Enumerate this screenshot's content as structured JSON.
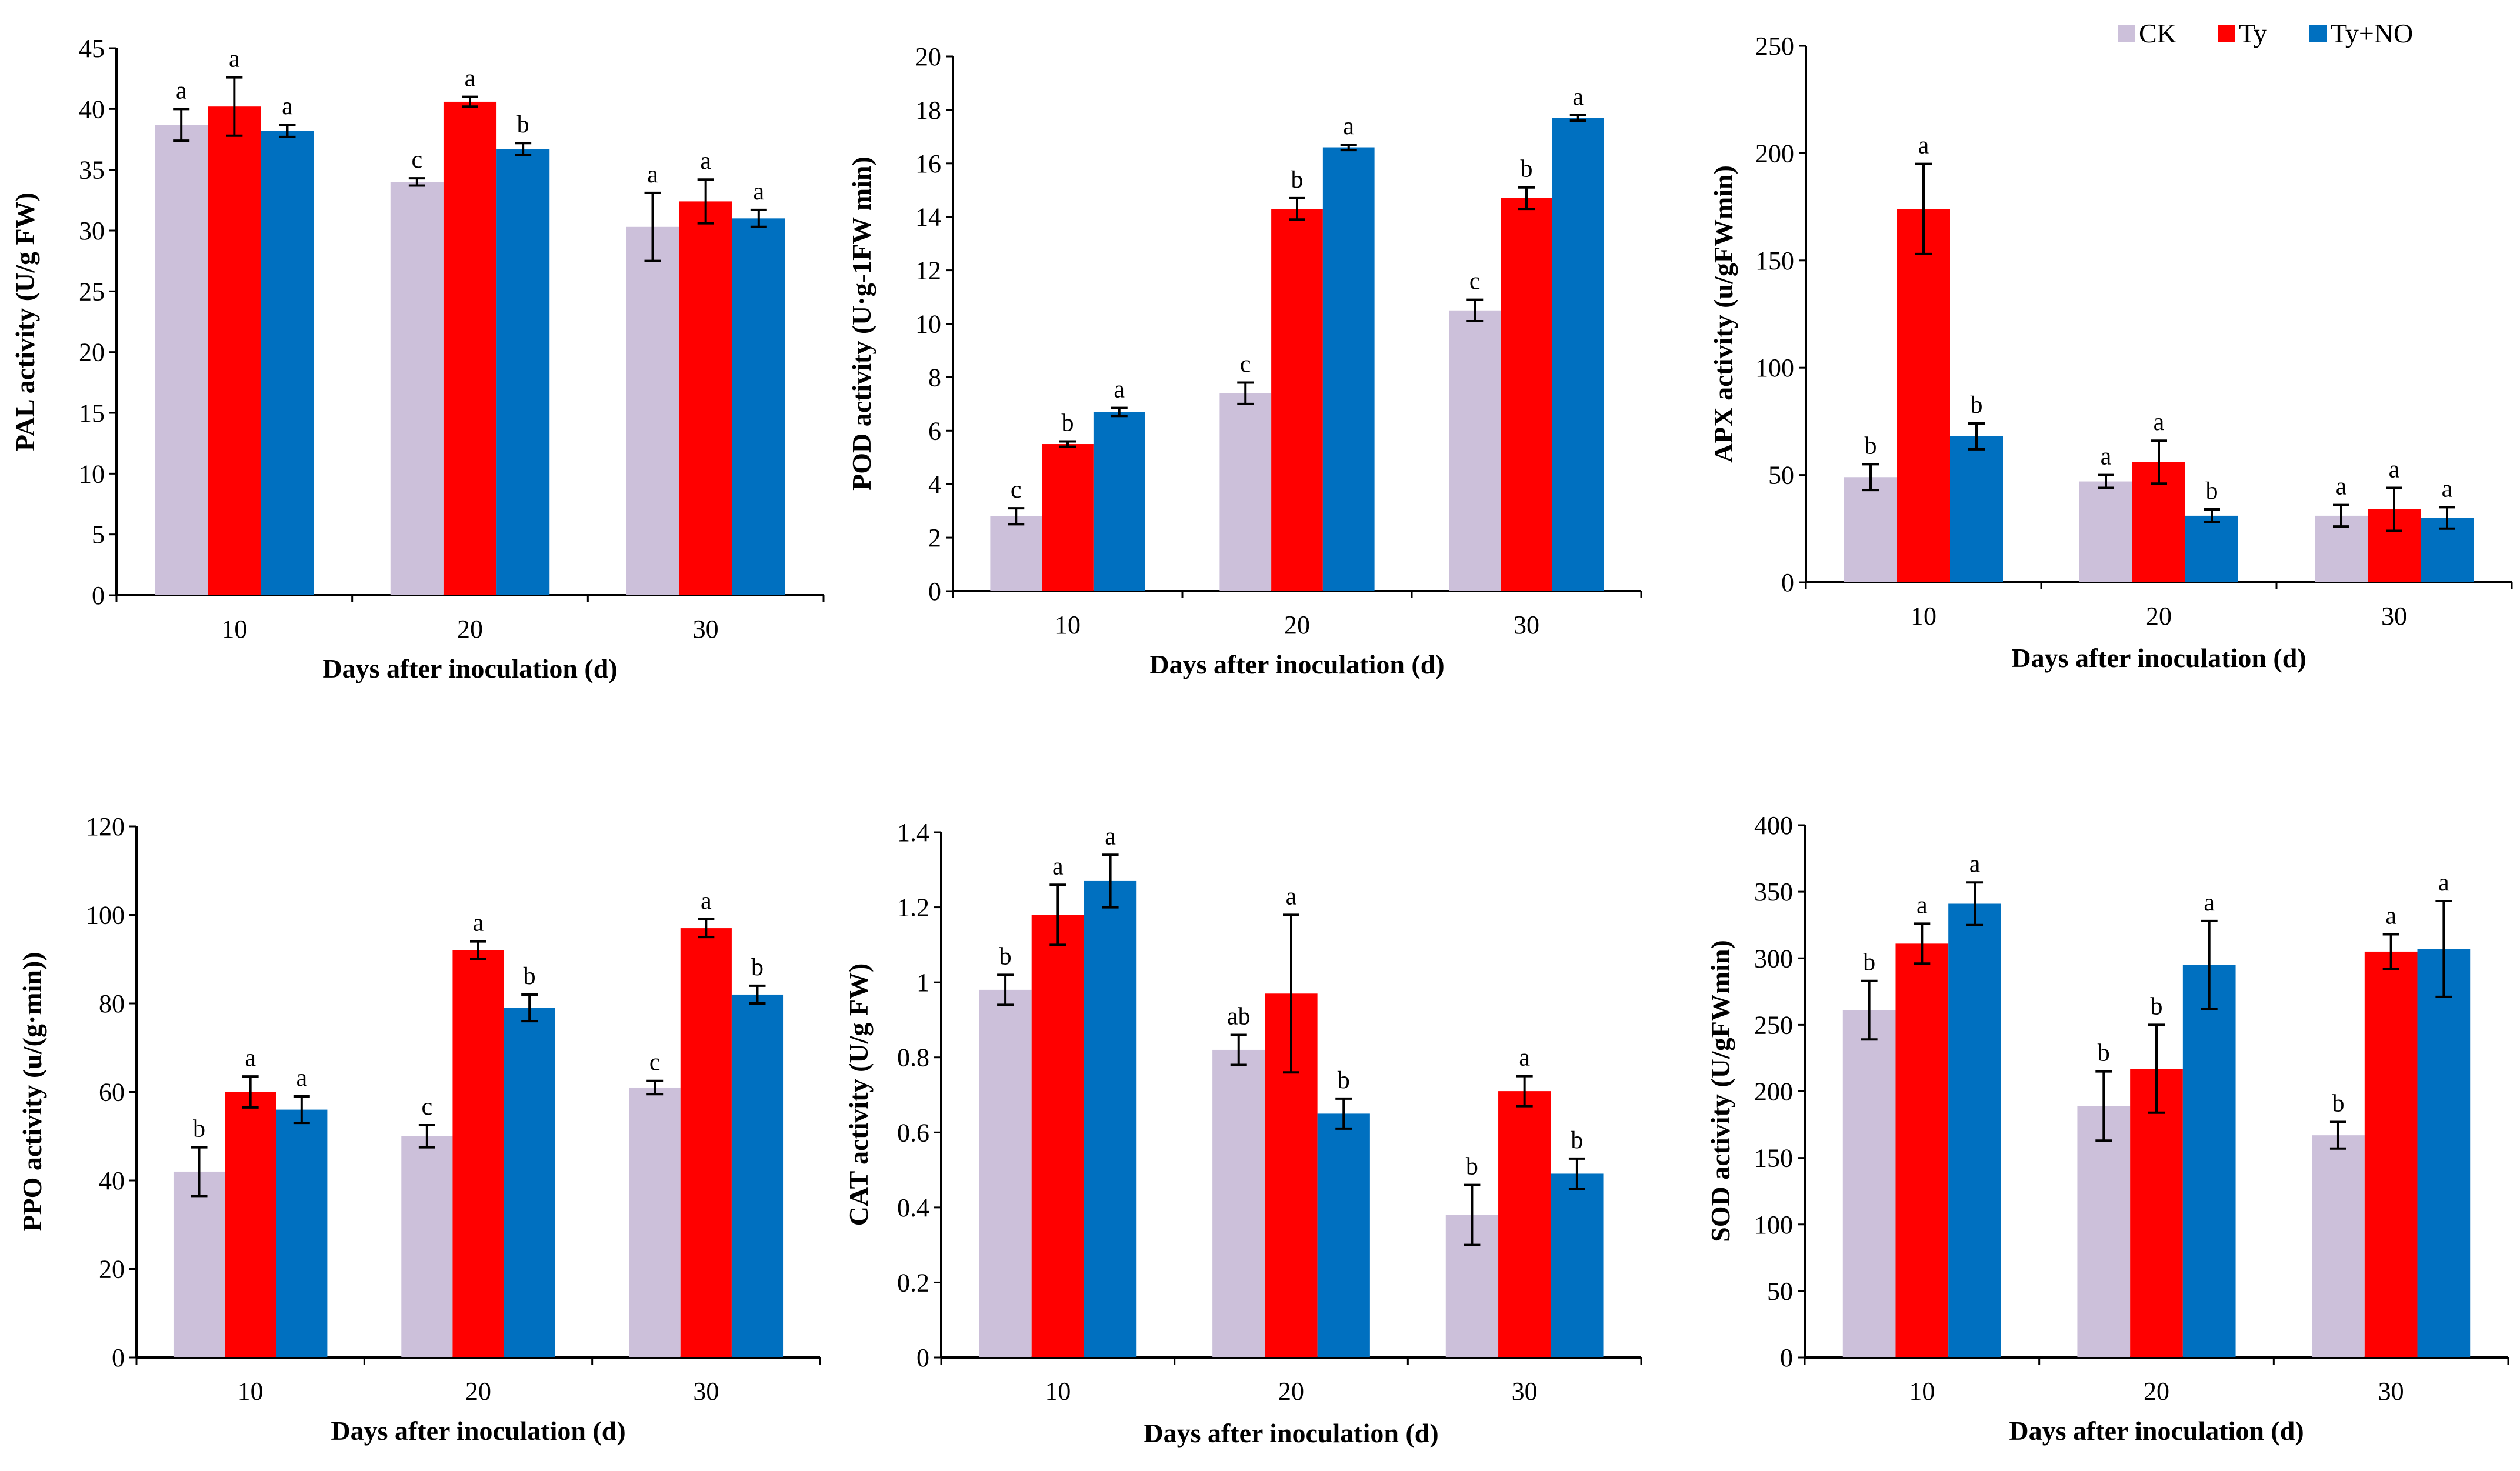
{
  "legend": [
    {
      "name": "CK",
      "color": "#ccc0da"
    },
    {
      "name": "Ty",
      "color": "#ff0000"
    },
    {
      "name": "Ty+NO",
      "color": "#0070c0"
    }
  ],
  "chart_data": [
    {
      "type": "bar",
      "id": "pal",
      "categories": [
        "10",
        "20",
        "30"
      ],
      "xlabel": "Days after inoculation (d)",
      "ylabel": "PAL activity (U/g FW)",
      "ylim": [
        0,
        45
      ],
      "yticks": [
        "0",
        "5",
        "10",
        "15",
        "20",
        "25",
        "30",
        "35",
        "40",
        "45"
      ],
      "series": [
        {
          "name": "CK",
          "values": [
            38.7,
            34.0,
            30.3
          ],
          "errors": [
            1.3,
            0.3,
            2.8
          ],
          "letters": [
            "a",
            "c",
            "a"
          ]
        },
        {
          "name": "Ty",
          "values": [
            40.2,
            40.6,
            32.4
          ],
          "errors": [
            2.4,
            0.4,
            1.8
          ],
          "letters": [
            "a",
            "a",
            "a"
          ]
        },
        {
          "name": "Ty+NO",
          "values": [
            38.2,
            36.7,
            31.0
          ],
          "errors": [
            0.5,
            0.5,
            0.7
          ],
          "letters": [
            "a",
            "b",
            "a"
          ]
        }
      ]
    },
    {
      "type": "bar",
      "id": "pod",
      "categories": [
        "10",
        "20",
        "30"
      ],
      "xlabel": "Days after inoculation (d)",
      "ylabel": "POD activity (U·g-1FW min)",
      "ylim": [
        0,
        20
      ],
      "yticks": [
        "0",
        "2",
        "4",
        "6",
        "8",
        "10",
        "12",
        "14",
        "16",
        "18",
        "20"
      ],
      "series": [
        {
          "name": "CK",
          "values": [
            2.8,
            7.4,
            10.5
          ],
          "errors": [
            0.3,
            0.4,
            0.4
          ],
          "letters": [
            "c",
            "c",
            "c"
          ]
        },
        {
          "name": "Ty",
          "values": [
            5.5,
            14.3,
            14.7
          ],
          "errors": [
            0.1,
            0.4,
            0.4
          ],
          "letters": [
            "b",
            "b",
            "b"
          ]
        },
        {
          "name": "Ty+NO",
          "values": [
            6.7,
            16.6,
            17.7
          ],
          "errors": [
            0.15,
            0.1,
            0.1
          ],
          "letters": [
            "a",
            "a",
            "a"
          ]
        }
      ]
    },
    {
      "type": "bar",
      "id": "apx",
      "categories": [
        "10",
        "20",
        "30"
      ],
      "xlabel": "Days after inoculation (d)",
      "ylabel": "APX activity (u/gFWmin)",
      "ylim": [
        0,
        250
      ],
      "yticks": [
        "0",
        "50",
        "100",
        "150",
        "200",
        "250"
      ],
      "series": [
        {
          "name": "CK",
          "values": [
            49,
            47,
            31
          ],
          "errors": [
            6,
            3,
            5
          ],
          "letters": [
            "b",
            "a",
            "a"
          ]
        },
        {
          "name": "Ty",
          "values": [
            174,
            56,
            34
          ],
          "errors": [
            21,
            10,
            10
          ],
          "letters": [
            "a",
            "a",
            "a"
          ]
        },
        {
          "name": "Ty+NO",
          "values": [
            68,
            31,
            30
          ],
          "errors": [
            6,
            3,
            5
          ],
          "letters": [
            "b",
            "b",
            "a"
          ]
        }
      ]
    },
    {
      "type": "bar",
      "id": "ppo",
      "categories": [
        "10",
        "20",
        "30"
      ],
      "xlabel": "Days after inoculation (d)",
      "ylabel": "PPO activity (u/(g·min))",
      "ylim": [
        0,
        120
      ],
      "yticks": [
        "0",
        "20",
        "40",
        "60",
        "80",
        "100",
        "120"
      ],
      "series": [
        {
          "name": "CK",
          "values": [
            42,
            50,
            61
          ],
          "errors": [
            5.5,
            2.5,
            1.5
          ],
          "letters": [
            "b",
            "c",
            "c"
          ]
        },
        {
          "name": "Ty",
          "values": [
            60,
            92,
            97
          ],
          "errors": [
            3.5,
            2,
            2
          ],
          "letters": [
            "a",
            "a",
            "a"
          ]
        },
        {
          "name": "Ty+NO",
          "values": [
            56,
            79,
            82
          ],
          "errors": [
            3,
            3,
            2
          ],
          "letters": [
            "a",
            "b",
            "b"
          ]
        }
      ]
    },
    {
      "type": "bar",
      "id": "cat",
      "categories": [
        "10",
        "20",
        "30"
      ],
      "xlabel": "Days after inoculation (d)",
      "ylabel": "CAT activity (U/g FW)",
      "ylim": [
        0,
        1.4
      ],
      "yticks": [
        "0",
        "0.2",
        "0.4",
        "0.6",
        "0.8",
        "1",
        "1.2",
        "1.4"
      ],
      "series": [
        {
          "name": "CK",
          "values": [
            0.98,
            0.82,
            0.38
          ],
          "errors": [
            0.04,
            0.04,
            0.08
          ],
          "letters": [
            "b",
            "ab",
            "b"
          ]
        },
        {
          "name": "Ty",
          "values": [
            1.18,
            0.97,
            0.71
          ],
          "errors": [
            0.08,
            0.21,
            0.04
          ],
          "letters": [
            "a",
            "a",
            "a"
          ]
        },
        {
          "name": "Ty+NO",
          "values": [
            1.27,
            0.65,
            0.49
          ],
          "errors": [
            0.07,
            0.04,
            0.04
          ],
          "letters": [
            "a",
            "b",
            "b"
          ]
        }
      ]
    },
    {
      "type": "bar",
      "id": "sod",
      "categories": [
        "10",
        "20",
        "30"
      ],
      "xlabel": "Days after inoculation (d)",
      "ylabel": "SOD activity (U/gFWmin)",
      "ylim": [
        0,
        400
      ],
      "yticks": [
        "0",
        "50",
        "100",
        "150",
        "200",
        "250",
        "300",
        "350",
        "400"
      ],
      "series": [
        {
          "name": "CK",
          "values": [
            261,
            189,
            167
          ],
          "errors": [
            22,
            26,
            10
          ],
          "letters": [
            "b",
            "b",
            "b"
          ]
        },
        {
          "name": "Ty",
          "values": [
            311,
            217,
            305
          ],
          "errors": [
            15,
            33,
            13
          ],
          "letters": [
            "a",
            "b",
            "a"
          ]
        },
        {
          "name": "Ty+NO",
          "values": [
            341,
            295,
            307
          ],
          "errors": [
            16,
            33,
            36
          ],
          "letters": [
            "a",
            "a",
            "a"
          ]
        }
      ]
    }
  ]
}
